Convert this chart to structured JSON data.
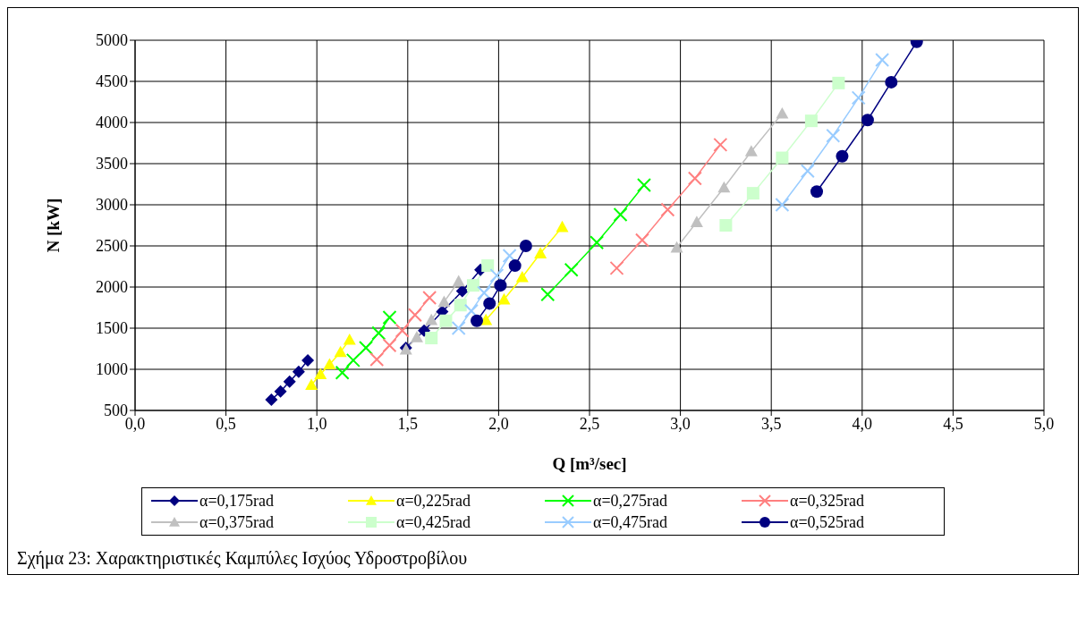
{
  "chart_data": {
    "type": "line",
    "xlabel": "Q [m³/sec]",
    "ylabel": "N [kW]",
    "xlim": [
      0,
      5
    ],
    "xticks": [
      {
        "value": 0,
        "label": "0,0"
      },
      {
        "value": 0.5,
        "label": "0,5"
      },
      {
        "value": 1,
        "label": "1,0"
      },
      {
        "value": 1.5,
        "label": "1,5"
      },
      {
        "value": 2,
        "label": "2,0"
      },
      {
        "value": 2.5,
        "label": "2,5"
      },
      {
        "value": 3,
        "label": "3,0"
      },
      {
        "value": 3.5,
        "label": "3,5"
      },
      {
        "value": 4,
        "label": "4,0"
      },
      {
        "value": 4.5,
        "label": "4,5"
      },
      {
        "value": 5,
        "label": "5,0"
      }
    ],
    "ylim": [
      500,
      5000
    ],
    "yticks": [
      500,
      1000,
      1500,
      2000,
      2500,
      3000,
      3500,
      4000,
      4500,
      5000
    ],
    "grid": true,
    "legend": "bottom",
    "annotations": [
      "Σχήμα 23: Χαρακτηριστικές Καμπύλες Ισχύος Υδροστροβίλου"
    ],
    "series": [
      {
        "name": "α=0,175rad",
        "color": "#000080",
        "marker": "diamond",
        "x": [
          0.75,
          0.8,
          0.85,
          0.9,
          0.95,
          null,
          1.49,
          1.59,
          1.69,
          1.8,
          1.9
        ],
        "values": [
          630,
          730,
          850,
          970,
          1110,
          null,
          1260,
          1470,
          1700,
          1950,
          2210
        ]
      },
      {
        "name": "α=0,225rad",
        "color": "#ffff00",
        "marker": "triangle",
        "x": [
          0.97,
          1.02,
          1.07,
          1.13,
          1.18,
          null,
          1.93,
          2.03,
          2.13,
          2.23,
          2.35
        ],
        "values": [
          810,
          940,
          1060,
          1210,
          1360,
          null,
          1600,
          1850,
          2120,
          2410,
          2730
        ]
      },
      {
        "name": "α=0,275rad",
        "color": "#00ff00",
        "marker": "cross",
        "x": [
          1.14,
          1.2,
          1.27,
          1.34,
          1.4,
          null,
          2.27,
          2.4,
          2.54,
          2.67,
          2.8
        ],
        "values": [
          960,
          1110,
          1260,
          1440,
          1630,
          null,
          1910,
          2210,
          2540,
          2880,
          3240
        ]
      },
      {
        "name": "α=0,325rad",
        "color": "#ff8080",
        "marker": "cross",
        "x": [
          1.33,
          1.4,
          1.47,
          1.54,
          1.62,
          null,
          2.65,
          2.79,
          2.93,
          3.08,
          3.22
        ],
        "values": [
          1120,
          1290,
          1470,
          1660,
          1870,
          null,
          2230,
          2570,
          2940,
          3320,
          3730
        ]
      },
      {
        "name": "α=0,375rad",
        "color": "#c0c0c0",
        "marker": "triangle",
        "x": [
          1.49,
          1.55,
          1.63,
          1.7,
          1.78,
          null,
          2.98,
          3.09,
          3.24,
          3.39,
          3.56
        ],
        "values": [
          1240,
          1390,
          1600,
          1820,
          2070,
          null,
          2480,
          2790,
          3210,
          3650,
          4110
        ]
      },
      {
        "name": "α=0,425rad",
        "color": "#ccffcc",
        "marker": "square",
        "x": [
          1.63,
          1.71,
          1.79,
          1.86,
          1.94,
          null,
          3.25,
          3.4,
          3.56,
          3.72,
          3.87
        ],
        "values": [
          1380,
          1590,
          1780,
          2020,
          2260,
          null,
          2750,
          3140,
          3570,
          4020,
          4480
        ]
      },
      {
        "name": "α=0,475rad",
        "color": "#99ccff",
        "marker": "cross",
        "x": [
          1.78,
          1.85,
          1.92,
          1.99,
          2.06,
          null,
          3.56,
          3.7,
          3.84,
          3.98,
          4.11
        ],
        "values": [
          1500,
          1710,
          1930,
          2140,
          2380,
          null,
          3000,
          3410,
          3840,
          4300,
          4760
        ]
      },
      {
        "name": "α=0,525rad",
        "color": "#000080",
        "marker": "circle",
        "x": [
          1.88,
          1.95,
          2.01,
          2.09,
          2.15,
          null,
          3.75,
          3.89,
          4.03,
          4.16,
          4.3
        ],
        "values": [
          1590,
          1800,
          2020,
          2260,
          2500,
          null,
          3160,
          3590,
          4030,
          4490,
          4980
        ]
      }
    ]
  }
}
